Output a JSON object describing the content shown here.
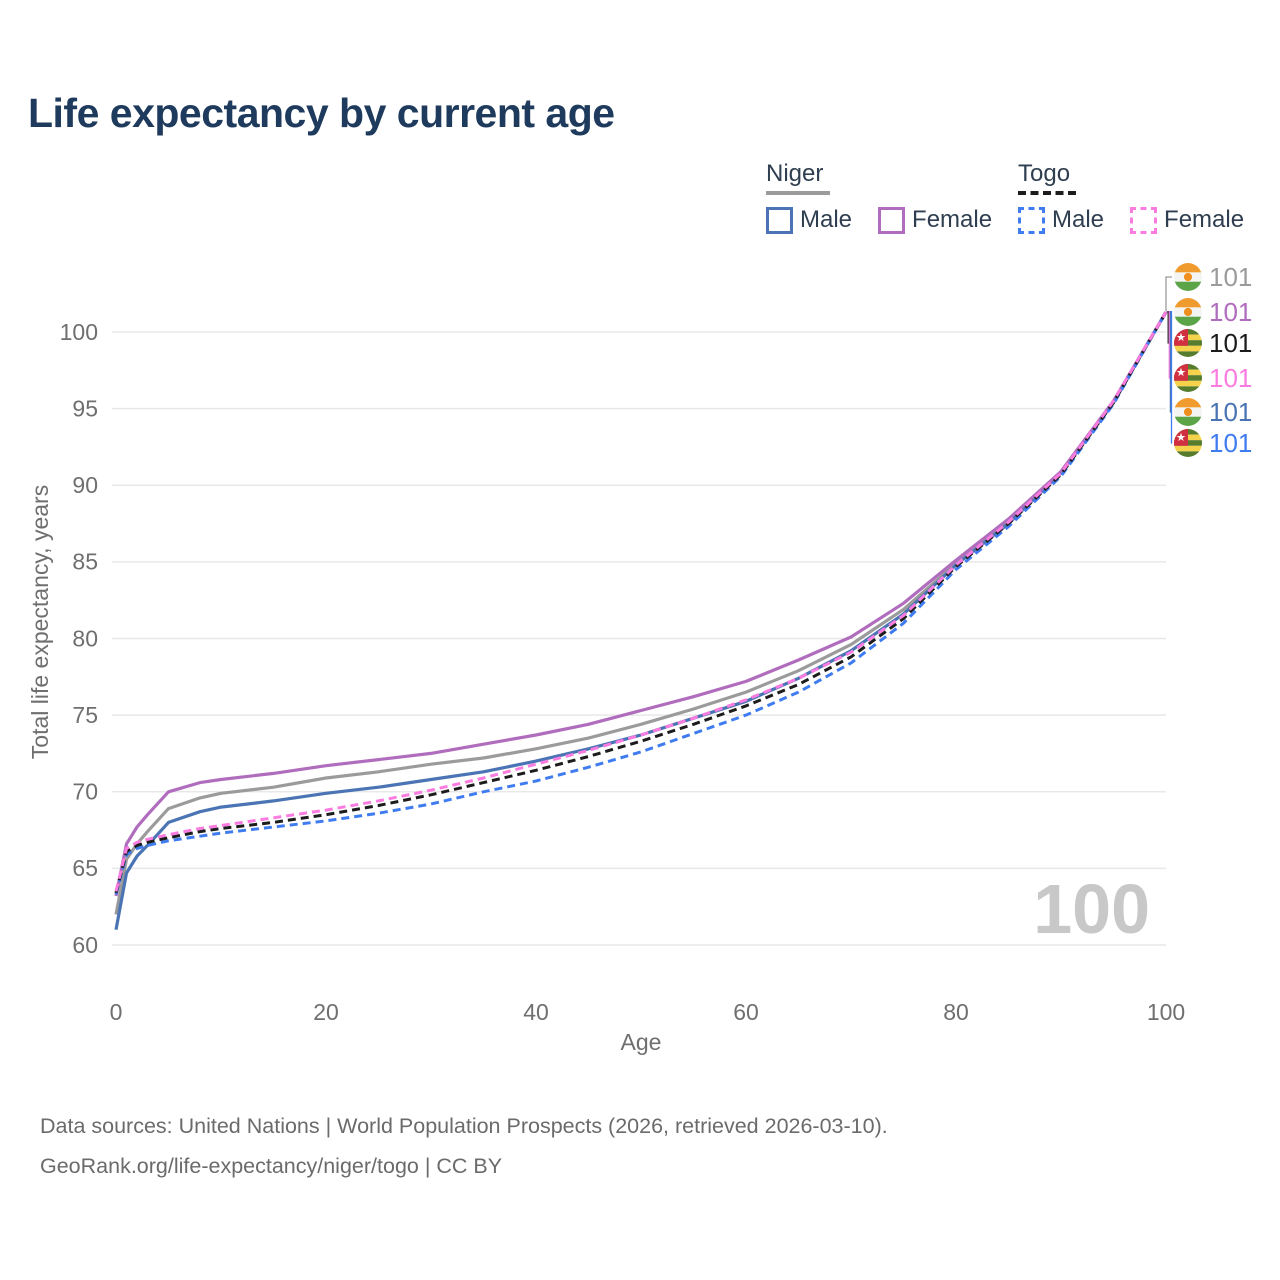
{
  "title": "Life expectancy by current age",
  "watermark": "100",
  "legend": {
    "groups": [
      {
        "label": "Niger",
        "line_style": "solid",
        "header_color": "#9b9b9b",
        "items": [
          {
            "label": "Male",
            "color": "#4a74b4"
          },
          {
            "label": "Female",
            "color": "#b16dbd"
          }
        ]
      },
      {
        "label": "Togo",
        "line_style": "dashed",
        "header_color": "#1c1c1c",
        "items": [
          {
            "label": "Male",
            "color": "#3f7cf0"
          },
          {
            "label": "Female",
            "color": "#fb7ce0"
          }
        ]
      }
    ]
  },
  "footer": {
    "line1": "Data sources: United Nations | World Population Prospects (2026, retrieved 2026-03-10).",
    "line2": "GeoRank.org/life-expectancy/niger/togo | CC BY"
  },
  "colors": {
    "title": "#1e3a5c",
    "axis_text": "#6f6f6f",
    "grid": "#e8e8e8",
    "watermark": "#c8c8c8",
    "footer": "#6b6b6b",
    "legend_text": "#2f3e50"
  },
  "flags": {
    "niger": {
      "orange": "#f09b2e",
      "white": "#f4f4f2",
      "green": "#5ba447",
      "dot": "#ef8f1f"
    },
    "togo": {
      "green": "#567c2e",
      "yellow": "#f5d24b",
      "red": "#d03040",
      "star": "#ffffff"
    }
  },
  "chart_data": {
    "type": "line",
    "title": "Life expectancy by current age",
    "xlabel": "Age",
    "ylabel": "Total life expectancy, years",
    "xlim": [
      0,
      100
    ],
    "ylim": [
      58.5,
      103
    ],
    "x_ticks": [
      0,
      20,
      40,
      60,
      80,
      100
    ],
    "y_ticks": [
      60,
      65,
      70,
      75,
      80,
      85,
      90,
      95,
      100
    ],
    "grid": "horizontal",
    "legend_position": "top-right",
    "x": [
      0,
      1,
      2,
      3,
      5,
      8,
      10,
      15,
      20,
      25,
      30,
      35,
      40,
      45,
      50,
      55,
      60,
      65,
      70,
      75,
      80,
      85,
      90,
      95,
      100
    ],
    "series": [
      {
        "id": "niger-total",
        "name": "Niger",
        "country": "niger",
        "sex": "both",
        "color": "#9b9b9b",
        "dash": "solid",
        "end_label": "101",
        "values": [
          62.0,
          65.6,
          66.6,
          67.4,
          68.9,
          69.6,
          69.9,
          70.3,
          70.9,
          71.3,
          71.8,
          72.2,
          72.8,
          73.5,
          74.4,
          75.4,
          76.5,
          77.9,
          79.6,
          81.9,
          84.9,
          87.6,
          90.8,
          95.4,
          101.3
        ]
      },
      {
        "id": "niger-female",
        "name": "Niger Female",
        "country": "niger",
        "sex": "female",
        "color": "#b16dbd",
        "dash": "solid",
        "end_label": "101",
        "values": [
          63.2,
          66.6,
          67.7,
          68.5,
          70.0,
          70.6,
          70.8,
          71.2,
          71.7,
          72.1,
          72.5,
          73.1,
          73.7,
          74.4,
          75.3,
          76.2,
          77.2,
          78.6,
          80.1,
          82.3,
          85.1,
          87.8,
          90.9,
          95.5,
          101.3
        ]
      },
      {
        "id": "togo-total",
        "name": "Togo",
        "country": "togo",
        "sex": "both",
        "color": "#1c1c1c",
        "dash": "dashed",
        "end_label": "101",
        "values": [
          63.4,
          66.1,
          66.5,
          66.7,
          67.0,
          67.4,
          67.6,
          68.0,
          68.5,
          69.1,
          69.8,
          70.6,
          71.4,
          72.3,
          73.3,
          74.4,
          75.6,
          77.0,
          78.8,
          81.3,
          84.7,
          87.5,
          90.7,
          95.4,
          101.3
        ]
      },
      {
        "id": "togo-female",
        "name": "Togo Female",
        "country": "togo",
        "sex": "female",
        "color": "#fb7ce0",
        "dash": "dashed",
        "end_label": "101",
        "values": [
          63.5,
          66.3,
          66.7,
          66.9,
          67.2,
          67.6,
          67.8,
          68.3,
          68.8,
          69.4,
          70.1,
          70.9,
          71.8,
          72.7,
          73.7,
          74.8,
          76.0,
          77.4,
          79.1,
          81.5,
          84.8,
          87.6,
          90.8,
          95.5,
          101.3
        ]
      },
      {
        "id": "niger-male",
        "name": "Niger Male",
        "country": "niger",
        "sex": "male",
        "color": "#4a74b4",
        "dash": "solid",
        "end_label": "101",
        "values": [
          61.0,
          64.7,
          65.8,
          66.5,
          68.0,
          68.7,
          69.0,
          69.4,
          69.9,
          70.3,
          70.8,
          71.3,
          72.0,
          72.8,
          73.7,
          74.8,
          75.9,
          77.4,
          79.2,
          81.6,
          84.8,
          87.5,
          90.8,
          95.4,
          101.3
        ]
      },
      {
        "id": "togo-male",
        "name": "Togo Male",
        "country": "togo",
        "sex": "male",
        "color": "#3f7cf0",
        "dash": "dashed",
        "end_label": "101",
        "values": [
          63.3,
          65.9,
          66.3,
          66.5,
          66.8,
          67.1,
          67.3,
          67.7,
          68.1,
          68.6,
          69.2,
          70.0,
          70.7,
          71.6,
          72.6,
          73.8,
          75.0,
          76.5,
          78.4,
          81.0,
          84.5,
          87.3,
          90.6,
          95.3,
          101.3
        ]
      }
    ]
  }
}
